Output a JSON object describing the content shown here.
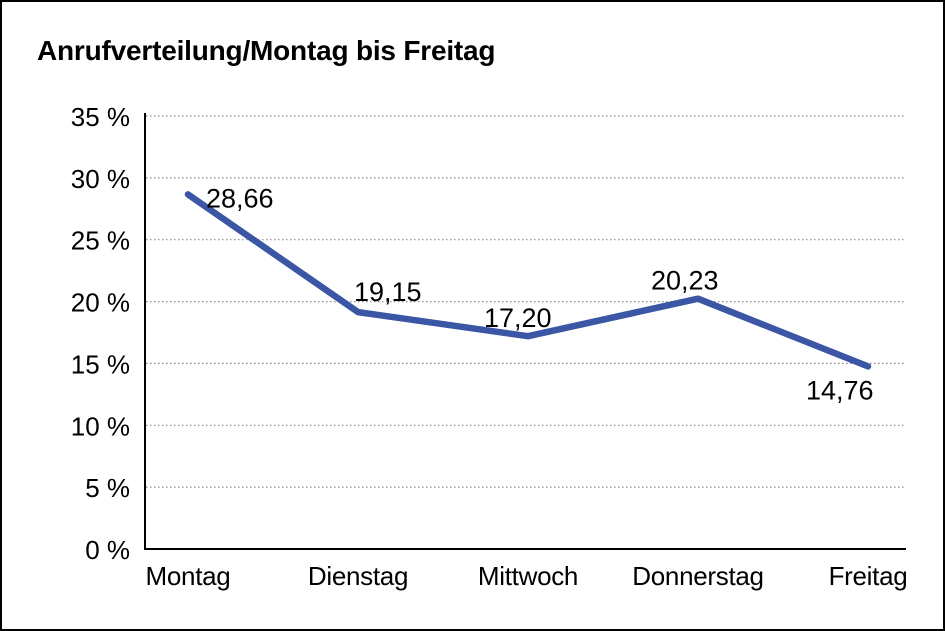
{
  "page": {
    "title": "Anrufverteilung/Montag bis Freitag"
  },
  "chart_data": {
    "type": "line",
    "title": "Anrufverteilung/Montag bis Freitag",
    "categories": [
      "Montag",
      "Dienstag",
      "Mittwoch",
      "Donnerstag",
      "Freitag"
    ],
    "values": [
      28.66,
      19.15,
      17.2,
      20.23,
      14.76
    ],
    "value_labels": [
      "28,66",
      "19,15",
      "17,20",
      "20,23",
      "14,76"
    ],
    "xlabel": "",
    "ylabel": "",
    "ylim": [
      0,
      35
    ],
    "y_tick_step": 5,
    "y_tick_values": [
      0,
      5,
      10,
      15,
      20,
      25,
      30,
      35
    ],
    "y_tick_labels": [
      "0 %",
      "5 %",
      "10 %",
      "15 %",
      "20 %",
      "25 %",
      "30 %",
      "35 %"
    ],
    "grid": "horizontal-dotted",
    "legend_position": "none",
    "line_color": "#3A56A4",
    "grid_color": "#8c8c8c",
    "axis_color": "#000000",
    "border_color": "#000000",
    "text_color": "#000000"
  }
}
